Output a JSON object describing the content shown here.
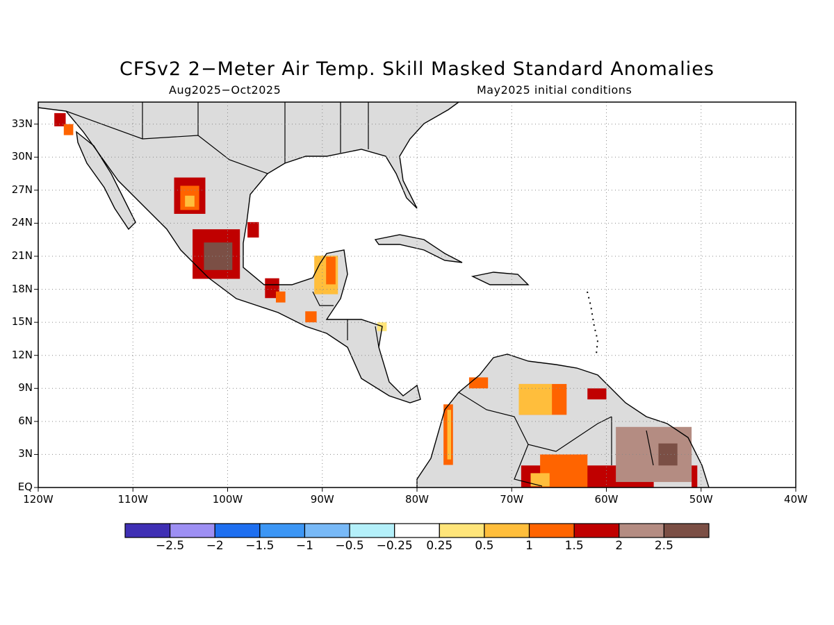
{
  "title": "CFSv2 2−Meter Air Temp. Skill Masked Standard Anomalies",
  "subtitle_left": "Aug2025−Oct2025",
  "subtitle_right": "May2025 initial conditions",
  "map": {
    "lon_range": [
      -120,
      -40
    ],
    "lat_range": [
      0,
      35
    ],
    "x_ticks": [
      "120W",
      "110W",
      "100W",
      "90W",
      "80W",
      "70W",
      "60W",
      "50W",
      "40W"
    ],
    "y_ticks": [
      "EQ",
      "3N",
      "6N",
      "9N",
      "12N",
      "15N",
      "18N",
      "21N",
      "24N",
      "27N",
      "30N",
      "33N"
    ],
    "grid": "dotted",
    "land_masked_color": "#dcdcdc"
  },
  "colorbar": {
    "colors": [
      "#3f2fb4",
      "#9d8ff3",
      "#1e6ff0",
      "#3c96f5",
      "#78b9f7",
      "#b4f0fa",
      "#ffffff",
      "#ffe57a",
      "#ffbe3c",
      "#ff6400",
      "#c00000",
      "#b48c82",
      "#7b4f45"
    ],
    "labels": [
      "−2.5",
      "−2",
      "−1.5",
      "−1",
      "−0.5",
      "−0.25",
      "0.25",
      "0.5",
      "1",
      "1.5",
      "2",
      "2.5"
    ]
  },
  "anomaly_patches": [
    {
      "lon": -117.7,
      "lat": 33.4,
      "w": 1.2,
      "h": 1.2,
      "color": "#c00000"
    },
    {
      "lon": -116.8,
      "lat": 32.5,
      "w": 1.0,
      "h": 1.0,
      "color": "#ff6400"
    },
    {
      "lon": -104.0,
      "lat": 26.5,
      "w": 3.3,
      "h": 3.3,
      "color": "#c00000"
    },
    {
      "lon": -104.0,
      "lat": 26.3,
      "w": 2.0,
      "h": 2.2,
      "color": "#ff6400"
    },
    {
      "lon": -104.0,
      "lat": 26.0,
      "w": 1.0,
      "h": 1.0,
      "color": "#ffbe3c"
    },
    {
      "lon": -101.2,
      "lat": 21.2,
      "w": 5.0,
      "h": 4.5,
      "color": "#c00000"
    },
    {
      "lon": -101.0,
      "lat": 21.0,
      "w": 3.0,
      "h": 2.5,
      "color": "#7b4f45"
    },
    {
      "lon": -97.3,
      "lat": 23.4,
      "w": 1.2,
      "h": 1.4,
      "color": "#c00000"
    },
    {
      "lon": -95.3,
      "lat": 18.1,
      "w": 1.5,
      "h": 1.8,
      "color": "#c00000"
    },
    {
      "lon": -94.4,
      "lat": 17.3,
      "w": 1.0,
      "h": 1.0,
      "color": "#ff6400"
    },
    {
      "lon": -91.2,
      "lat": 15.5,
      "w": 1.2,
      "h": 1.0,
      "color": "#ff6400"
    },
    {
      "lon": -89.6,
      "lat": 19.3,
      "w": 2.5,
      "h": 3.5,
      "color": "#ffbe3c"
    },
    {
      "lon": -89.1,
      "lat": 19.7,
      "w": 1.0,
      "h": 2.5,
      "color": "#ff6400"
    },
    {
      "lon": -83.7,
      "lat": 14.6,
      "w": 1.0,
      "h": 0.8,
      "color": "#ffe57a"
    },
    {
      "lon": -76.7,
      "lat": 4.8,
      "w": 1.0,
      "h": 5.5,
      "color": "#ff6400"
    },
    {
      "lon": -76.6,
      "lat": 4.8,
      "w": 0.4,
      "h": 4.5,
      "color": "#ffbe3c"
    },
    {
      "lon": -73.5,
      "lat": 9.5,
      "w": 2.0,
      "h": 1.0,
      "color": "#ff6400"
    },
    {
      "lon": -66.7,
      "lat": 8.0,
      "w": 5.0,
      "h": 2.8,
      "color": "#ff6400"
    },
    {
      "lon": -67.5,
      "lat": 8.0,
      "w": 3.5,
      "h": 2.8,
      "color": "#ffbe3c"
    },
    {
      "lon": -61.0,
      "lat": 8.5,
      "w": 2.0,
      "h": 1.0,
      "color": "#c00000"
    },
    {
      "lon": -62.0,
      "lat": 1.0,
      "w": 14.0,
      "h": 2.0,
      "color": "#c00000"
    },
    {
      "lon": -64.5,
      "lat": 1.5,
      "w": 5.0,
      "h": 3.0,
      "color": "#ff6400"
    },
    {
      "lon": -67.0,
      "lat": 0.7,
      "w": 2.0,
      "h": 1.2,
      "color": "#ffbe3c"
    },
    {
      "lon": -55.0,
      "lat": 3.0,
      "w": 8.0,
      "h": 5.0,
      "color": "#b48c82"
    },
    {
      "lon": -53.5,
      "lat": 3.0,
      "w": 2.0,
      "h": 2.0,
      "color": "#7b4f45"
    },
    {
      "lon": -50.7,
      "lat": 1.0,
      "w": 0.6,
      "h": 2.0,
      "color": "#c00000"
    }
  ]
}
